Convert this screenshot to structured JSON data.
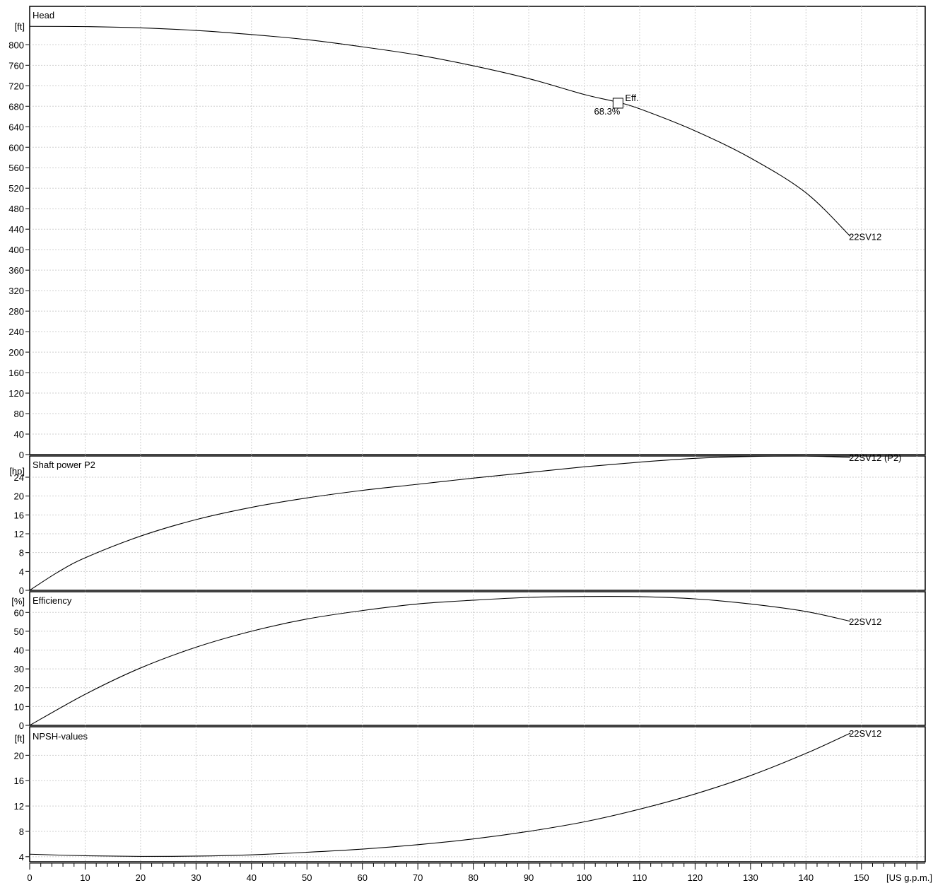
{
  "chart_data": {
    "type": "line",
    "x_axis": {
      "unit": "[US g.p.m.]",
      "min": 0,
      "max": 161.5,
      "ticks": [
        0,
        10,
        20,
        30,
        40,
        50,
        60,
        70,
        80,
        90,
        100,
        110,
        120,
        130,
        140,
        150
      ]
    },
    "panels": [
      {
        "id": "head",
        "title": "Head",
        "unit": "[ft]",
        "ylim": [
          0,
          875
        ],
        "yticks": [
          0,
          40,
          80,
          120,
          160,
          200,
          240,
          280,
          320,
          360,
          400,
          440,
          480,
          520,
          560,
          600,
          640,
          680,
          720,
          760,
          800
        ],
        "series": [
          {
            "name": "22SV12",
            "x": [
              0,
              10,
              20,
              30,
              40,
              50,
              60,
              70,
              80,
              90,
              100,
              106,
              110,
              120,
              130,
              140,
              148
            ],
            "y": [
              836,
              835.5,
              833,
              828,
              820,
              810,
              796,
              780,
              759,
              734,
              703,
              688,
              675,
              632,
              579,
              511,
              426
            ]
          }
        ],
        "annotation": {
          "marker": "Eff.",
          "label": "68.3%",
          "x": 106.1,
          "y": 686
        }
      },
      {
        "id": "power",
        "title": "Shaft power P2",
        "unit": "[hp]",
        "ylim": [
          0,
          28.5
        ],
        "yticks": [
          0,
          4,
          8,
          12,
          16,
          20,
          24
        ],
        "series": [
          {
            "name": "22SV12 (P2)",
            "x": [
              0,
              5,
              10,
              20,
              30,
              40,
              50,
              60,
              70,
              80,
              90,
              100,
              110,
              120,
              130,
              140,
              148
            ],
            "y": [
              0,
              3.8,
              6.9,
              11.5,
              15.0,
              17.6,
              19.6,
              21.2,
              22.5,
              23.8,
              25.0,
              26.2,
              27.2,
              28.0,
              28.4,
              28.5,
              28.2
            ]
          }
        ]
      },
      {
        "id": "efficiency",
        "title": "Efficiency",
        "unit": "[%]",
        "ylim": [
          0,
          71
        ],
        "yticks": [
          0,
          10,
          20,
          30,
          40,
          50,
          60
        ],
        "series": [
          {
            "name": "22SV12",
            "x": [
              0,
              10,
              20,
              30,
              40,
              50,
              60,
              70,
              80,
              90,
              100,
              110,
              120,
              130,
              140,
              148
            ],
            "y": [
              0,
              16.5,
              30.5,
              41.5,
              50,
              56.5,
              61,
              64.5,
              66.5,
              68,
              68.5,
              68.4,
              67.2,
              64.5,
              60.5,
              55.3
            ]
          }
        ]
      },
      {
        "id": "npsh",
        "title": "NPSH-values",
        "unit": "[ft]",
        "ylim": [
          3.2,
          24.5
        ],
        "yticks": [
          4,
          8,
          12,
          16,
          20
        ],
        "series": [
          {
            "name": "22SV12",
            "x": [
              0,
              10,
              20,
              30,
              40,
              50,
              60,
              70,
              80,
              90,
              100,
              110,
              120,
              130,
              140,
              148
            ],
            "y": [
              4.4,
              4.15,
              4.05,
              4.1,
              4.3,
              4.7,
              5.2,
              5.9,
              6.8,
              8.0,
              9.5,
              11.5,
              13.9,
              16.8,
              20.3,
              23.5
            ]
          }
        ]
      }
    ]
  }
}
